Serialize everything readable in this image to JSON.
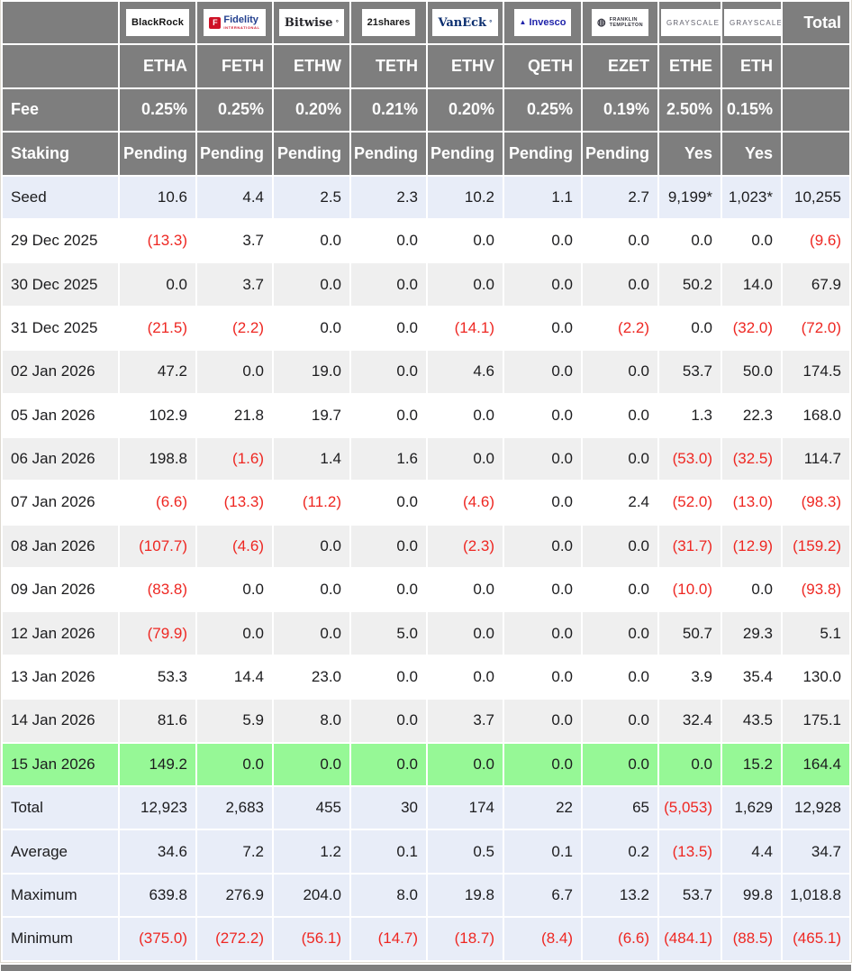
{
  "colors": {
    "header_bg": "#7e7e7e",
    "header_text": "#ffffff",
    "body_text": "#1c1c1e",
    "negative": "#ee2722",
    "band_bg": "#e8edf8",
    "alt_row_bg": "#efefef",
    "highlight_row_bg": "#96f896"
  },
  "labels": {
    "fee": "Fee",
    "staking": "Staking",
    "total": "Total"
  },
  "providers": [
    {
      "name": "BlackRock",
      "ticker": "ETHA",
      "fee": "0.25%",
      "staking": "Pending",
      "logo": {
        "kind": "blackrock",
        "text": "BlackRock"
      }
    },
    {
      "name": "Fidelity",
      "ticker": "FETH",
      "fee": "0.25%",
      "staking": "Pending",
      "logo": {
        "kind": "fidelity",
        "mark": "F",
        "text": "Fidelity",
        "sub": "INTERNATIONAL"
      }
    },
    {
      "name": "Bitwise",
      "ticker": "ETHW",
      "fee": "0.20%",
      "staking": "Pending",
      "logo": {
        "kind": "bitwise",
        "text": "Bitwise",
        "tm": "°"
      }
    },
    {
      "name": "21shares",
      "ticker": "TETH",
      "fee": "0.21%",
      "staking": "Pending",
      "logo": {
        "kind": "21shares",
        "text": "21shares"
      }
    },
    {
      "name": "VanEck",
      "ticker": "ETHV",
      "fee": "0.20%",
      "staking": "Pending",
      "logo": {
        "kind": "vaneck",
        "text": "VanEck",
        "tm": "°"
      }
    },
    {
      "name": "Invesco",
      "ticker": "QETH",
      "fee": "0.25%",
      "staking": "Pending",
      "logo": {
        "kind": "invesco",
        "mark": "▲",
        "text": "Invesco"
      }
    },
    {
      "name": "Franklin Templeton",
      "ticker": "EZET",
      "fee": "0.19%",
      "staking": "Pending",
      "logo": {
        "kind": "franklin",
        "icon": "◍",
        "line1": "FRANKLIN",
        "line2": "TEMPLETON"
      }
    },
    {
      "name": "Grayscale",
      "ticker": "ETHE",
      "fee": "2.50%",
      "staking": "Yes",
      "logo": {
        "kind": "grayscale",
        "text": "GRAYSCALE"
      }
    },
    {
      "name": "Grayscale",
      "ticker": "ETH",
      "fee": "0.15%",
      "staking": "Yes",
      "logo": {
        "kind": "grayscale",
        "text": "GRAYSCALE"
      }
    }
  ],
  "rows": [
    {
      "label": "Seed",
      "type": "seed",
      "values": [
        "10.6",
        "4.4",
        "2.5",
        "2.3",
        "10.2",
        "1.1",
        "2.7",
        "9,199*",
        "1,023*",
        "10,255"
      ]
    },
    {
      "label": "29 Dec 2025",
      "type": "data",
      "values": [
        "(13.3)",
        "3.7",
        "0.0",
        "0.0",
        "0.0",
        "0.0",
        "0.0",
        "0.0",
        "0.0",
        "(9.6)"
      ]
    },
    {
      "label": "30 Dec 2025",
      "type": "data",
      "values": [
        "0.0",
        "3.7",
        "0.0",
        "0.0",
        "0.0",
        "0.0",
        "0.0",
        "50.2",
        "14.0",
        "67.9"
      ]
    },
    {
      "label": "31 Dec 2025",
      "type": "data",
      "values": [
        "(21.5)",
        "(2.2)",
        "0.0",
        "0.0",
        "(14.1)",
        "0.0",
        "(2.2)",
        "0.0",
        "(32.0)",
        "(72.0)"
      ]
    },
    {
      "label": "02 Jan 2026",
      "type": "data",
      "values": [
        "47.2",
        "0.0",
        "19.0",
        "0.0",
        "4.6",
        "0.0",
        "0.0",
        "53.7",
        "50.0",
        "174.5"
      ]
    },
    {
      "label": "05 Jan 2026",
      "type": "data",
      "values": [
        "102.9",
        "21.8",
        "19.7",
        "0.0",
        "0.0",
        "0.0",
        "0.0",
        "1.3",
        "22.3",
        "168.0"
      ]
    },
    {
      "label": "06 Jan 2026",
      "type": "data",
      "values": [
        "198.8",
        "(1.6)",
        "1.4",
        "1.6",
        "0.0",
        "0.0",
        "0.0",
        "(53.0)",
        "(32.5)",
        "114.7"
      ]
    },
    {
      "label": "07 Jan 2026",
      "type": "data",
      "values": [
        "(6.6)",
        "(13.3)",
        "(11.2)",
        "0.0",
        "(4.6)",
        "0.0",
        "2.4",
        "(52.0)",
        "(13.0)",
        "(98.3)"
      ]
    },
    {
      "label": "08 Jan 2026",
      "type": "data",
      "values": [
        "(107.7)",
        "(4.6)",
        "0.0",
        "0.0",
        "(2.3)",
        "0.0",
        "0.0",
        "(31.7)",
        "(12.9)",
        "(159.2)"
      ]
    },
    {
      "label": "09 Jan 2026",
      "type": "data",
      "values": [
        "(83.8)",
        "0.0",
        "0.0",
        "0.0",
        "0.0",
        "0.0",
        "0.0",
        "(10.0)",
        "0.0",
        "(93.8)"
      ]
    },
    {
      "label": "12 Jan 2026",
      "type": "data",
      "values": [
        "(79.9)",
        "0.0",
        "0.0",
        "5.0",
        "0.0",
        "0.0",
        "0.0",
        "50.7",
        "29.3",
        "5.1"
      ]
    },
    {
      "label": "13 Jan 2026",
      "type": "data",
      "values": [
        "53.3",
        "14.4",
        "23.0",
        "0.0",
        "0.0",
        "0.0",
        "0.0",
        "3.9",
        "35.4",
        "130.0"
      ]
    },
    {
      "label": "14 Jan 2026",
      "type": "data",
      "values": [
        "81.6",
        "5.9",
        "8.0",
        "0.0",
        "3.7",
        "0.0",
        "0.0",
        "32.4",
        "43.5",
        "175.1"
      ]
    },
    {
      "label": "15 Jan 2026",
      "type": "highlight",
      "values": [
        "149.2",
        "0.0",
        "0.0",
        "0.0",
        "0.0",
        "0.0",
        "0.0",
        "0.0",
        "15.2",
        "164.4"
      ]
    },
    {
      "label": "Total",
      "type": "summary",
      "values": [
        "12,923",
        "2,683",
        "455",
        "30",
        "174",
        "22",
        "65",
        "(5,053)",
        "1,629",
        "12,928"
      ]
    },
    {
      "label": "Average",
      "type": "summary",
      "values": [
        "34.6",
        "7.2",
        "1.2",
        "0.1",
        "0.5",
        "0.1",
        "0.2",
        "(13.5)",
        "4.4",
        "34.7"
      ]
    },
    {
      "label": "Maximum",
      "type": "summary",
      "values": [
        "639.8",
        "276.9",
        "204.0",
        "8.0",
        "19.8",
        "6.7",
        "13.2",
        "53.7",
        "99.8",
        "1,018.8"
      ]
    },
    {
      "label": "Minimum",
      "type": "summary",
      "values": [
        "(375.0)",
        "(272.2)",
        "(56.1)",
        "(14.7)",
        "(18.7)",
        "(8.4)",
        "(6.6)",
        "(484.1)",
        "(88.5)",
        "(465.1)"
      ]
    }
  ]
}
